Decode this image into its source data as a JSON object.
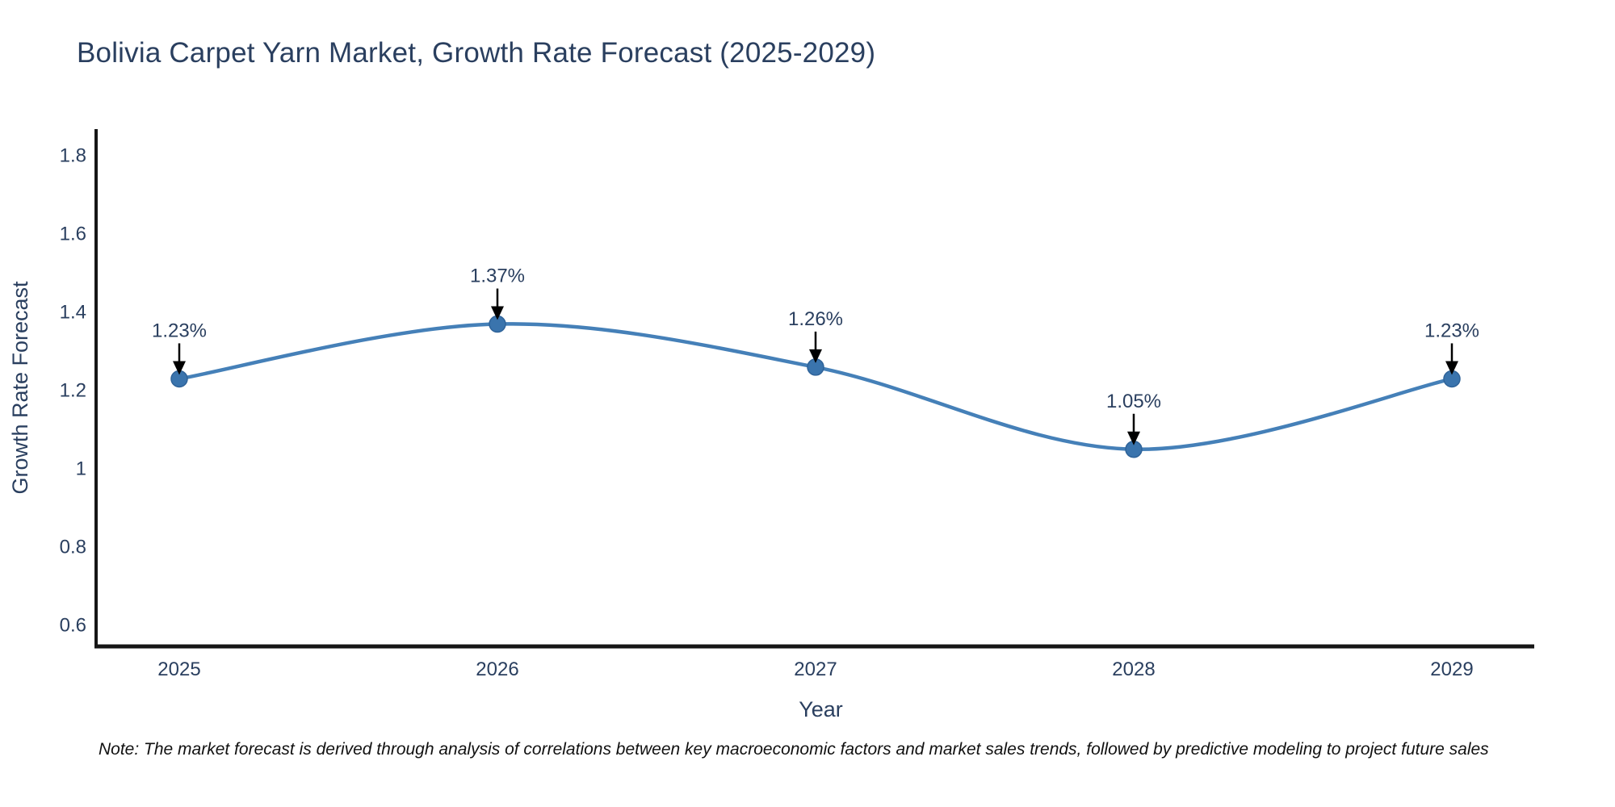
{
  "title": "Bolivia Carpet Yarn Market, Growth Rate Forecast (2025-2029)",
  "note": "Note: The market forecast is derived through analysis of correlations between key macroeconomic factors and market sales trends, followed by predictive modeling to project future sales",
  "chart_data": {
    "type": "line",
    "title": "Bolivia Carpet Yarn Market, Growth Rate Forecast (2025-2029)",
    "xlabel": "Year",
    "ylabel": "Growth Rate Forecast",
    "x": [
      2025,
      2026,
      2027,
      2028,
      2029
    ],
    "series": [
      {
        "name": "Growth Rate Forecast",
        "values": [
          1.23,
          1.37,
          1.26,
          1.05,
          1.23
        ]
      }
    ],
    "point_labels": [
      "1.23%",
      "1.37%",
      "1.26%",
      "1.05%",
      "1.23%"
    ],
    "xtick_labels": [
      "2025",
      "2026",
      "2027",
      "2028",
      "2029"
    ],
    "ytick_labels": [
      "1.8",
      "1.6",
      "1.4",
      "1.2",
      "1",
      "0.8",
      "0.6"
    ],
    "yticks": [
      1.8,
      1.6,
      1.4,
      1.2,
      1.0,
      0.8,
      0.6
    ],
    "ylim": [
      0.548,
      1.868
    ],
    "line_shape": "spline",
    "grid": false,
    "legend_position": "none",
    "colors": {
      "line": "#4580b8",
      "marker": "#3a74ad",
      "marker_edge": "#2f6399",
      "axis": "#161616",
      "tick_text": "#2a3f5f",
      "title_text": "#2a3f5f",
      "annotation_text": "#2a3f5f",
      "annotation_arrow": "#000000",
      "background": "#ffffff"
    }
  }
}
